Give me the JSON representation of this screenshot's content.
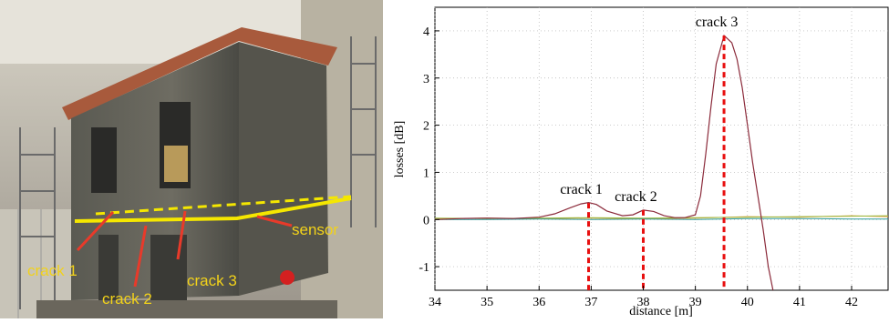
{
  "photo": {
    "labels": {
      "crack1": "crack 1",
      "crack2": "crack 2",
      "crack3": "crack 3",
      "sensor": "sensor"
    },
    "colors": {
      "sensor_line": "#f5e700",
      "label_text": "#f2d21a",
      "arrow": "#e83a2a"
    }
  },
  "chart_data": {
    "type": "line",
    "title": "",
    "xlabel": "distance [m]",
    "ylabel": "losses [dB]",
    "xlim": [
      34,
      42.7
    ],
    "ylim": [
      -1.5,
      4.5
    ],
    "xticks": [
      34,
      35,
      36,
      37,
      38,
      39,
      40,
      41,
      42
    ],
    "yticks": [
      -1,
      0,
      1,
      2,
      3,
      4
    ],
    "grid": true,
    "annotations": [
      {
        "label": "crack 1",
        "x": 36.95,
        "y": 0.35
      },
      {
        "label": "crack 2",
        "x": 38.0,
        "y": 0.2
      },
      {
        "label": "crack 3",
        "x": 39.55,
        "y": 3.9
      }
    ],
    "series": [
      {
        "color": "#8b2a3a",
        "x": [
          34,
          34.5,
          35,
          35.5,
          36,
          36.3,
          36.6,
          36.8,
          36.95,
          37.1,
          37.3,
          37.6,
          37.8,
          38.0,
          38.2,
          38.4,
          38.6,
          38.8,
          39.0,
          39.1,
          39.2,
          39.3,
          39.4,
          39.55,
          39.7,
          39.8,
          39.9,
          40.0,
          40.1,
          40.2,
          40.3,
          40.4,
          40.5
        ],
        "y": [
          0.0,
          0.02,
          0.03,
          0.02,
          0.05,
          0.12,
          0.25,
          0.33,
          0.36,
          0.32,
          0.18,
          0.08,
          0.1,
          0.2,
          0.17,
          0.08,
          0.04,
          0.04,
          0.1,
          0.5,
          1.4,
          2.4,
          3.3,
          3.9,
          3.75,
          3.4,
          2.8,
          2.0,
          1.2,
          0.5,
          -0.2,
          -1.0,
          -1.55
        ]
      },
      {
        "color": "#2c9a9a",
        "x": [
          34,
          35,
          36,
          37,
          38,
          39,
          40,
          41,
          42,
          42.7
        ],
        "y": [
          0.0,
          0.0,
          0.01,
          0.0,
          0.01,
          0.0,
          0.02,
          0.02,
          0.01,
          0.01
        ]
      },
      {
        "color": "#9ab83c",
        "x": [
          34,
          35,
          36,
          37,
          38,
          39,
          40,
          41,
          42,
          42.7
        ],
        "y": [
          0.03,
          0.02,
          0.03,
          0.04,
          0.03,
          0.04,
          0.05,
          0.06,
          0.07,
          0.08
        ]
      },
      {
        "color": "#e0a040",
        "x": [
          34,
          35,
          36,
          37,
          38,
          39,
          40,
          41,
          42,
          42.7
        ],
        "y": [
          0.01,
          0.03,
          0.02,
          0.03,
          0.02,
          0.03,
          0.06,
          0.05,
          0.08,
          0.06
        ]
      }
    ],
    "marker_lines": {
      "color": "#e81010",
      "x": [
        36.95,
        38.0,
        39.55
      ]
    }
  }
}
